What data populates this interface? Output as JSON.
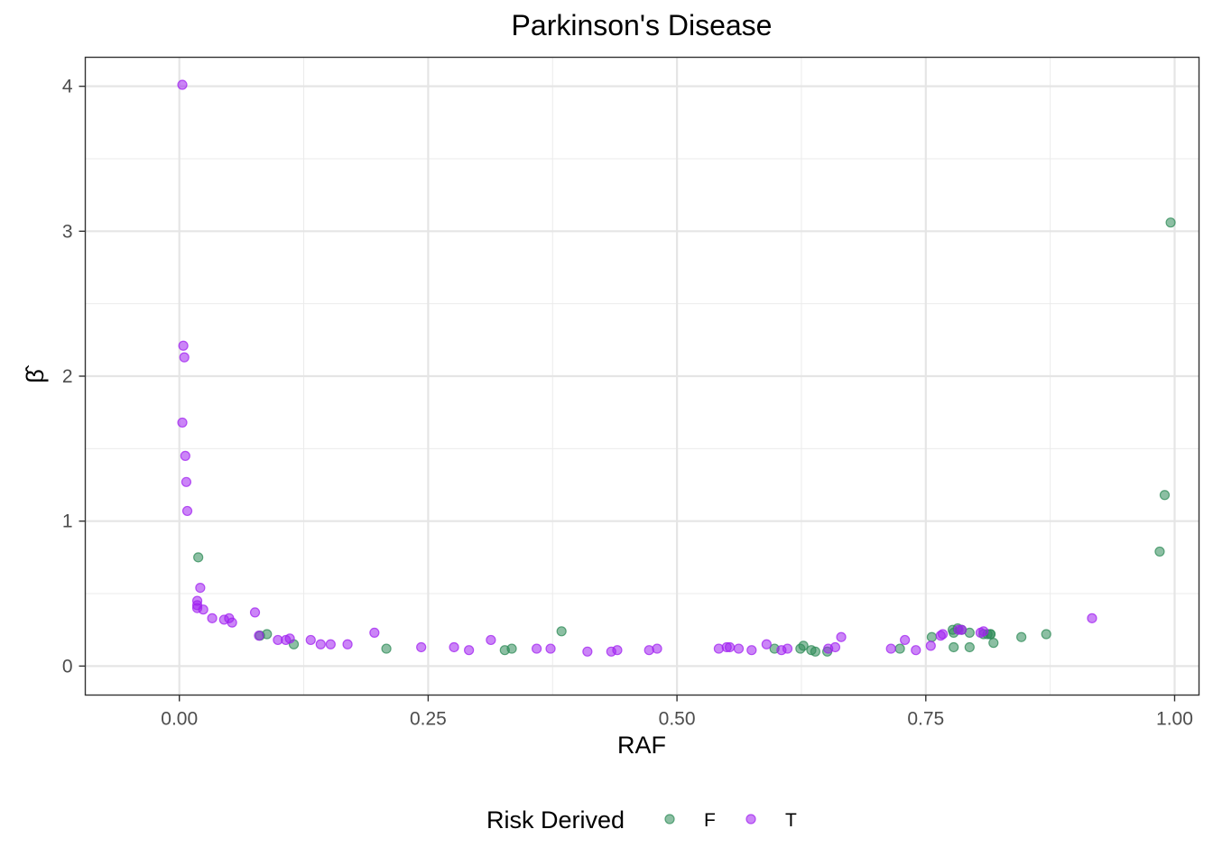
{
  "chart_data": {
    "type": "scatter",
    "title": "Parkinson's Disease",
    "xlabel": "RAF",
    "ylabel": "β̂",
    "xlim": [
      -0.0945,
      1.0245
    ],
    "ylim": [
      -0.2,
      4.2
    ],
    "x_ticks": [
      0,
      0.25,
      0.5,
      0.75,
      1
    ],
    "x_tick_labels": [
      "0.00",
      "0.25",
      "0.50",
      "0.75",
      "1.00"
    ],
    "y_ticks": [
      0,
      1,
      2,
      3,
      4
    ],
    "y_tick_labels": [
      "0",
      "1",
      "2",
      "3",
      "4"
    ],
    "grid": true,
    "legend": {
      "title": "Risk Derived",
      "position": "bottom",
      "entries": [
        {
          "label": "F",
          "color": "#2e8b57"
        },
        {
          "label": "T",
          "color": "#a020f0"
        }
      ]
    },
    "series": [
      {
        "name": "F",
        "color": "#2e8b57",
        "x": [
          0.019,
          0.088,
          0.115,
          0.208,
          0.327,
          0.334,
          0.384,
          0.598,
          0.624,
          0.627,
          0.635,
          0.639,
          0.651,
          0.724,
          0.756,
          0.777,
          0.778,
          0.782,
          0.786,
          0.794,
          0.808,
          0.812,
          0.815,
          0.818,
          0.846,
          0.871,
          0.985,
          0.99,
          0.996,
          0.081,
          0.778,
          0.794,
          0.815
        ],
        "y": [
          0.75,
          0.22,
          0.15,
          0.12,
          0.11,
          0.12,
          0.24,
          0.12,
          0.12,
          0.14,
          0.11,
          0.1,
          0.1,
          0.12,
          0.2,
          0.25,
          0.13,
          0.26,
          0.25,
          0.23,
          0.22,
          0.22,
          0.22,
          0.16,
          0.2,
          0.22,
          0.79,
          1.18,
          3.06,
          0.21,
          0.23,
          0.13,
          0.22
        ]
      },
      {
        "name": "T",
        "color": "#a020f0",
        "x": [
          0.003,
          0.004,
          0.005,
          0.003,
          0.006,
          0.007,
          0.008,
          0.018,
          0.018,
          0.018,
          0.021,
          0.024,
          0.033,
          0.045,
          0.05,
          0.053,
          0.076,
          0.08,
          0.099,
          0.107,
          0.111,
          0.132,
          0.142,
          0.152,
          0.169,
          0.196,
          0.243,
          0.276,
          0.291,
          0.313,
          0.359,
          0.373,
          0.41,
          0.434,
          0.44,
          0.472,
          0.48,
          0.542,
          0.55,
          0.553,
          0.562,
          0.575,
          0.59,
          0.605,
          0.611,
          0.652,
          0.659,
          0.665,
          0.715,
          0.729,
          0.74,
          0.755,
          0.765,
          0.767,
          0.783,
          0.786,
          0.805,
          0.808,
          0.917
        ],
        "y": [
          4.01,
          2.21,
          2.13,
          1.68,
          1.45,
          1.27,
          1.07,
          0.45,
          0.42,
          0.4,
          0.54,
          0.39,
          0.33,
          0.32,
          0.33,
          0.3,
          0.37,
          0.21,
          0.18,
          0.18,
          0.19,
          0.18,
          0.15,
          0.15,
          0.15,
          0.23,
          0.13,
          0.13,
          0.11,
          0.18,
          0.12,
          0.12,
          0.1,
          0.1,
          0.11,
          0.11,
          0.12,
          0.12,
          0.13,
          0.13,
          0.12,
          0.11,
          0.15,
          0.11,
          0.12,
          0.12,
          0.13,
          0.2,
          0.12,
          0.18,
          0.11,
          0.14,
          0.21,
          0.22,
          0.25,
          0.25,
          0.23,
          0.24,
          0.33
        ]
      }
    ]
  }
}
